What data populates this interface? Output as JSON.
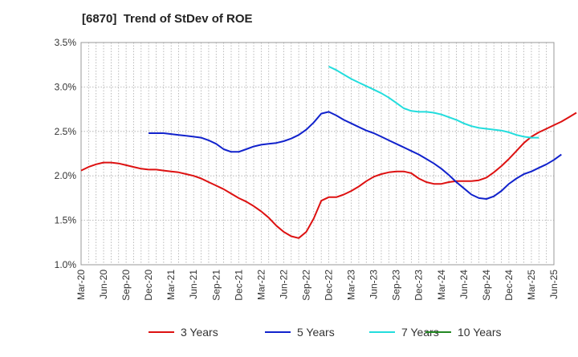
{
  "chart_data": {
    "type": "line",
    "title": "[6870]  Trend of StDev of ROE",
    "xlabel": "",
    "ylabel": "",
    "ylim": [
      1.0,
      3.5
    ],
    "y_ticks": [
      "1.0%",
      "1.5%",
      "2.0%",
      "2.5%",
      "3.0%",
      "3.5%"
    ],
    "x_ticks": [
      "Mar-20",
      "Jun-20",
      "Sep-20",
      "Dec-20",
      "Mar-21",
      "Jun-21",
      "Sep-21",
      "Dec-21",
      "Mar-22",
      "Jun-22",
      "Sep-22",
      "Dec-22",
      "Mar-23",
      "Jun-23",
      "Sep-23",
      "Dec-23",
      "Mar-24",
      "Jun-24",
      "Sep-24",
      "Dec-24",
      "Mar-25",
      "Jun-25"
    ],
    "x_start": "2020-03",
    "x_end": "2025-06",
    "grid": true,
    "legend_position": "bottom",
    "series": [
      {
        "name": "3 Years",
        "color": "#dd1111",
        "points": [
          [
            "2020-03",
            2.06
          ],
          [
            "2020-04",
            2.1
          ],
          [
            "2020-05",
            2.13
          ],
          [
            "2020-06",
            2.15
          ],
          [
            "2020-07",
            2.15
          ],
          [
            "2020-08",
            2.14
          ],
          [
            "2020-09",
            2.12
          ],
          [
            "2020-10",
            2.1
          ],
          [
            "2020-11",
            2.08
          ],
          [
            "2020-12",
            2.07
          ],
          [
            "2021-01",
            2.07
          ],
          [
            "2021-02",
            2.06
          ],
          [
            "2021-03",
            2.05
          ],
          [
            "2021-04",
            2.04
          ],
          [
            "2021-05",
            2.02
          ],
          [
            "2021-06",
            2.0
          ],
          [
            "2021-07",
            1.97
          ],
          [
            "2021-08",
            1.93
          ],
          [
            "2021-09",
            1.89
          ],
          [
            "2021-10",
            1.85
          ],
          [
            "2021-11",
            1.8
          ],
          [
            "2021-12",
            1.75
          ],
          [
            "2022-01",
            1.71
          ],
          [
            "2022-02",
            1.66
          ],
          [
            "2022-03",
            1.6
          ],
          [
            "2022-04",
            1.53
          ],
          [
            "2022-05",
            1.44
          ],
          [
            "2022-06",
            1.37
          ],
          [
            "2022-07",
            1.32
          ],
          [
            "2022-08",
            1.3
          ],
          [
            "2022-09",
            1.37
          ],
          [
            "2022-10",
            1.52
          ],
          [
            "2022-11",
            1.72
          ],
          [
            "2022-12",
            1.76
          ],
          [
            "2023-01",
            1.76
          ],
          [
            "2023-02",
            1.79
          ],
          [
            "2023-03",
            1.83
          ],
          [
            "2023-04",
            1.88
          ],
          [
            "2023-05",
            1.94
          ],
          [
            "2023-06",
            1.99
          ],
          [
            "2023-07",
            2.02
          ],
          [
            "2023-08",
            2.04
          ],
          [
            "2023-09",
            2.05
          ],
          [
            "2023-10",
            2.05
          ],
          [
            "2023-11",
            2.03
          ],
          [
            "2023-12",
            1.97
          ],
          [
            "2024-01",
            1.93
          ],
          [
            "2024-02",
            1.91
          ],
          [
            "2024-03",
            1.91
          ],
          [
            "2024-04",
            1.93
          ],
          [
            "2024-05",
            1.94
          ],
          [
            "2024-06",
            1.94
          ],
          [
            "2024-07",
            1.94
          ],
          [
            "2024-08",
            1.95
          ],
          [
            "2024-09",
            1.98
          ],
          [
            "2024-10",
            2.04
          ],
          [
            "2024-11",
            2.11
          ],
          [
            "2024-12",
            2.19
          ],
          [
            "2025-01",
            2.28
          ],
          [
            "2025-02",
            2.37
          ],
          [
            "2025-03",
            2.44
          ],
          [
            "2025-04",
            2.49
          ],
          [
            "2025-05",
            2.53
          ],
          [
            "2025-06",
            2.57
          ],
          [
            "2025-07",
            2.61
          ],
          [
            "2025-08",
            2.66
          ],
          [
            "2025-09",
            2.71
          ]
        ]
      },
      {
        "name": "5 Years",
        "color": "#1122cc",
        "points": [
          [
            "2020-12",
            2.48
          ],
          [
            "2021-01",
            2.48
          ],
          [
            "2021-02",
            2.48
          ],
          [
            "2021-03",
            2.47
          ],
          [
            "2021-04",
            2.46
          ],
          [
            "2021-05",
            2.45
          ],
          [
            "2021-06",
            2.44
          ],
          [
            "2021-07",
            2.43
          ],
          [
            "2021-08",
            2.4
          ],
          [
            "2021-09",
            2.36
          ],
          [
            "2021-10",
            2.3
          ],
          [
            "2021-11",
            2.27
          ],
          [
            "2021-12",
            2.27
          ],
          [
            "2022-01",
            2.3
          ],
          [
            "2022-02",
            2.33
          ],
          [
            "2022-03",
            2.35
          ],
          [
            "2022-04",
            2.36
          ],
          [
            "2022-05",
            2.37
          ],
          [
            "2022-06",
            2.39
          ],
          [
            "2022-07",
            2.42
          ],
          [
            "2022-08",
            2.46
          ],
          [
            "2022-09",
            2.52
          ],
          [
            "2022-10",
            2.6
          ],
          [
            "2022-11",
            2.7
          ],
          [
            "2022-12",
            2.72
          ],
          [
            "2023-01",
            2.68
          ],
          [
            "2023-02",
            2.63
          ],
          [
            "2023-03",
            2.59
          ],
          [
            "2023-04",
            2.55
          ],
          [
            "2023-05",
            2.51
          ],
          [
            "2023-06",
            2.48
          ],
          [
            "2023-07",
            2.44
          ],
          [
            "2023-08",
            2.4
          ],
          [
            "2023-09",
            2.36
          ],
          [
            "2023-10",
            2.32
          ],
          [
            "2023-11",
            2.28
          ],
          [
            "2023-12",
            2.24
          ],
          [
            "2024-01",
            2.19
          ],
          [
            "2024-02",
            2.14
          ],
          [
            "2024-03",
            2.08
          ],
          [
            "2024-04",
            2.01
          ],
          [
            "2024-05",
            1.93
          ],
          [
            "2024-06",
            1.86
          ],
          [
            "2024-07",
            1.79
          ],
          [
            "2024-08",
            1.75
          ],
          [
            "2024-09",
            1.74
          ],
          [
            "2024-10",
            1.77
          ],
          [
            "2024-11",
            1.83
          ],
          [
            "2024-12",
            1.91
          ],
          [
            "2025-01",
            1.97
          ],
          [
            "2025-02",
            2.02
          ],
          [
            "2025-03",
            2.05
          ],
          [
            "2025-04",
            2.09
          ],
          [
            "2025-05",
            2.13
          ],
          [
            "2025-06",
            2.18
          ],
          [
            "2025-07",
            2.24
          ]
        ]
      },
      {
        "name": "7 Years",
        "color": "#22dddd",
        "points": [
          [
            "2022-12",
            3.23
          ],
          [
            "2023-01",
            3.19
          ],
          [
            "2023-02",
            3.14
          ],
          [
            "2023-03",
            3.09
          ],
          [
            "2023-04",
            3.05
          ],
          [
            "2023-05",
            3.01
          ],
          [
            "2023-06",
            2.97
          ],
          [
            "2023-07",
            2.93
          ],
          [
            "2023-08",
            2.88
          ],
          [
            "2023-09",
            2.82
          ],
          [
            "2023-10",
            2.76
          ],
          [
            "2023-11",
            2.73
          ],
          [
            "2023-12",
            2.72
          ],
          [
            "2024-01",
            2.72
          ],
          [
            "2024-02",
            2.71
          ],
          [
            "2024-03",
            2.69
          ],
          [
            "2024-04",
            2.66
          ],
          [
            "2024-05",
            2.63
          ],
          [
            "2024-06",
            2.59
          ],
          [
            "2024-07",
            2.56
          ],
          [
            "2024-08",
            2.54
          ],
          [
            "2024-09",
            2.53
          ],
          [
            "2024-10",
            2.52
          ],
          [
            "2024-11",
            2.51
          ],
          [
            "2024-12",
            2.49
          ],
          [
            "2025-01",
            2.46
          ],
          [
            "2025-02",
            2.44
          ],
          [
            "2025-03",
            2.43
          ],
          [
            "2025-04",
            2.43
          ]
        ]
      },
      {
        "name": "10 Years",
        "color": "#228822",
        "points": []
      }
    ]
  }
}
